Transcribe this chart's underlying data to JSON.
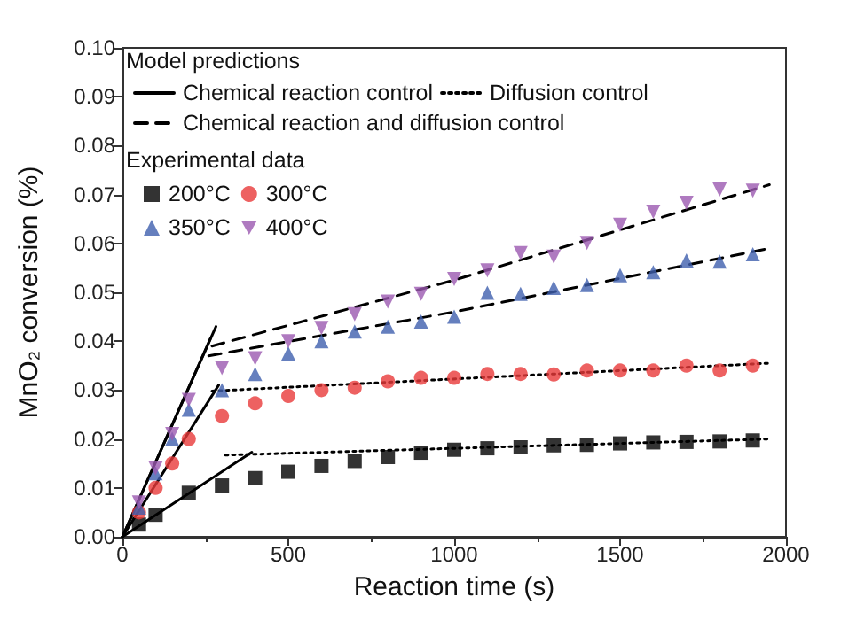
{
  "chart_data": {
    "type": "scatter",
    "xlabel": "Reaction time (s)",
    "ylabel": "MnO₂ conversion (%)",
    "xlim": [
      0,
      2000
    ],
    "xticks": [
      0,
      500,
      1000,
      1500,
      2000
    ],
    "ylim": [
      0,
      0.1
    ],
    "yticks": [
      {
        "value": 0,
        "label": "0.00"
      },
      0.01,
      0.02,
      0.03,
      0.04,
      0.05,
      0.06,
      0.07,
      0.08,
      0.09,
      {
        "value": 0.1,
        "label": "0.10"
      }
    ],
    "grid": false,
    "legend": "top left",
    "annotations": [
      "Model predictions",
      "Experimental data"
    ],
    "series": [
      {
        "type": "line",
        "name": "Chemical reaction control",
        "color": "#000000",
        "line_style": "solid",
        "x": [
          0,
          390
        ],
        "values": [
          0,
          0.0173
        ]
      },
      {
        "type": "line",
        "color": "#000000",
        "line_style": "solid",
        "x": [
          0,
          290
        ],
        "values": [
          0,
          0.031
        ]
      },
      {
        "type": "line",
        "color": "#000000",
        "line_style": "solid",
        "x": [
          0,
          265
        ],
        "values": [
          0,
          0.0405
        ]
      },
      {
        "type": "line",
        "color": "#000000",
        "line_style": "solid",
        "x": [
          0,
          282
        ],
        "values": [
          0,
          0.043
        ]
      },
      {
        "type": "line",
        "name": "Diffusion control",
        "color": "#000000",
        "line_style": "dotted",
        "x": [
          310,
          1950
        ],
        "values": [
          0.0167,
          0.02
        ]
      },
      {
        "type": "line",
        "color": "#000000",
        "line_style": "dotted",
        "x": [
          270,
          1950
        ],
        "values": [
          0.0298,
          0.0355
        ]
      },
      {
        "type": "line",
        "name": "Chemical reaction and diffusion control",
        "color": "#000000",
        "line_style": "dashed",
        "x": [
          260,
          1000,
          1950
        ],
        "values": [
          0.037,
          0.046,
          0.059
        ]
      },
      {
        "type": "line",
        "color": "#000000",
        "line_style": "dashed",
        "x": [
          270,
          1000,
          1950
        ],
        "values": [
          0.039,
          0.0525,
          0.072
        ]
      },
      {
        "name": "200°C",
        "color": "#000000",
        "marker": "square",
        "x": [
          50,
          100,
          200,
          300,
          400,
          500,
          600,
          700,
          800,
          900,
          1000,
          1100,
          1200,
          1300,
          1400,
          1500,
          1600,
          1700,
          1800,
          1900
        ],
        "values": [
          0.0025,
          0.0045,
          0.009,
          0.0105,
          0.012,
          0.0133,
          0.0145,
          0.0155,
          0.0163,
          0.0172,
          0.0178,
          0.0181,
          0.0183,
          0.0187,
          0.0188,
          0.0191,
          0.0193,
          0.0194,
          0.0195,
          0.0197
        ]
      },
      {
        "name": "300°C",
        "color": "#e8393a",
        "marker": "circle",
        "x": [
          50,
          100,
          150,
          200,
          300,
          400,
          500,
          600,
          700,
          800,
          900,
          1000,
          1100,
          1200,
          1300,
          1400,
          1500,
          1600,
          1700,
          1800,
          1900
        ],
        "values": [
          0.005,
          0.01,
          0.015,
          0.02,
          0.0247,
          0.0273,
          0.0288,
          0.03,
          0.0305,
          0.0318,
          0.0325,
          0.0325,
          0.0333,
          0.0333,
          0.0332,
          0.034,
          0.034,
          0.034,
          0.035,
          0.034,
          0.035
        ]
      },
      {
        "name": "350°C",
        "color": "#3f5fae",
        "marker": "triangle",
        "x": [
          50,
          100,
          150,
          200,
          300,
          400,
          500,
          600,
          700,
          800,
          900,
          1000,
          1100,
          1200,
          1300,
          1400,
          1500,
          1600,
          1700,
          1800,
          1900
        ],
        "values": [
          0.006,
          0.013,
          0.02,
          0.026,
          0.03,
          0.0333,
          0.0375,
          0.04,
          0.042,
          0.043,
          0.044,
          0.045,
          0.0499,
          0.0497,
          0.0509,
          0.0515,
          0.0535,
          0.0541,
          0.0565,
          0.0563,
          0.0578
        ]
      },
      {
        "name": "400°C",
        "color": "#9b59b0",
        "marker": "triangle-down",
        "x": [
          50,
          100,
          150,
          200,
          300,
          400,
          500,
          600,
          700,
          800,
          900,
          1000,
          1100,
          1200,
          1300,
          1400,
          1500,
          1600,
          1700,
          1800,
          1900
        ],
        "values": [
          0.007,
          0.014,
          0.021,
          0.028,
          0.0345,
          0.0365,
          0.04,
          0.0427,
          0.0455,
          0.0481,
          0.0497,
          0.0527,
          0.0545,
          0.058,
          0.0573,
          0.0601,
          0.0638,
          0.0665,
          0.0683,
          0.071,
          0.0708
        ]
      }
    ]
  }
}
